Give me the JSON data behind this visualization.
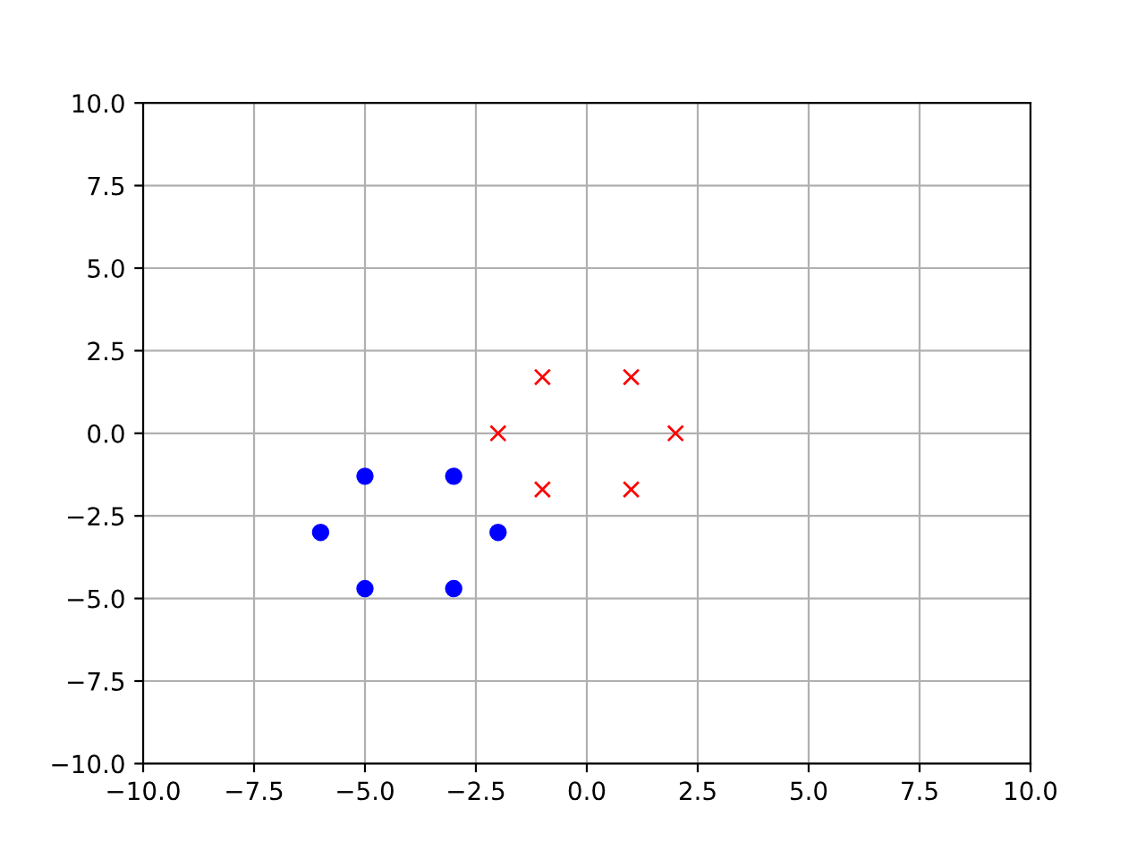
{
  "chart_data": {
    "type": "scatter",
    "series": [
      {
        "color": "#0000ff",
        "marker": "circle",
        "x": [
          -6,
          -5,
          -3,
          -2,
          -3,
          -5
        ],
        "values": [
          -3,
          -1.3,
          -1.3,
          -3,
          -4.7,
          -4.7
        ]
      },
      {
        "color": "#ff0000",
        "marker": "cross",
        "x": [
          2,
          1,
          -1,
          -2,
          -1,
          1
        ],
        "values": [
          0,
          1.7,
          1.7,
          0,
          -1.7,
          -1.7
        ]
      }
    ],
    "xlim": [
      -10,
      10
    ],
    "ylim": [
      -10,
      10
    ],
    "xticks": [
      {
        "value": -10,
        "label": "−10.0"
      },
      {
        "value": -7.5,
        "label": "−7.5"
      },
      {
        "value": -5,
        "label": "−5.0"
      },
      {
        "value": -2.5,
        "label": "−2.5"
      },
      {
        "value": 0,
        "label": "0.0"
      },
      {
        "value": 2.5,
        "label": "2.5"
      },
      {
        "value": 5,
        "label": "5.0"
      },
      {
        "value": 7.5,
        "label": "7.5"
      },
      {
        "value": 10,
        "label": "10.0"
      }
    ],
    "yticks": [
      {
        "value": -10,
        "label": "−10.0"
      },
      {
        "value": -7.5,
        "label": "−7.5"
      },
      {
        "value": -5,
        "label": "−5.0"
      },
      {
        "value": -2.5,
        "label": "−2.5"
      },
      {
        "value": 0,
        "label": "0.0"
      },
      {
        "value": 2.5,
        "label": "2.5"
      },
      {
        "value": 5,
        "label": "5.0"
      },
      {
        "value": 7.5,
        "label": "7.5"
      },
      {
        "value": 10,
        "label": "10.0"
      }
    ],
    "grid": true
  }
}
